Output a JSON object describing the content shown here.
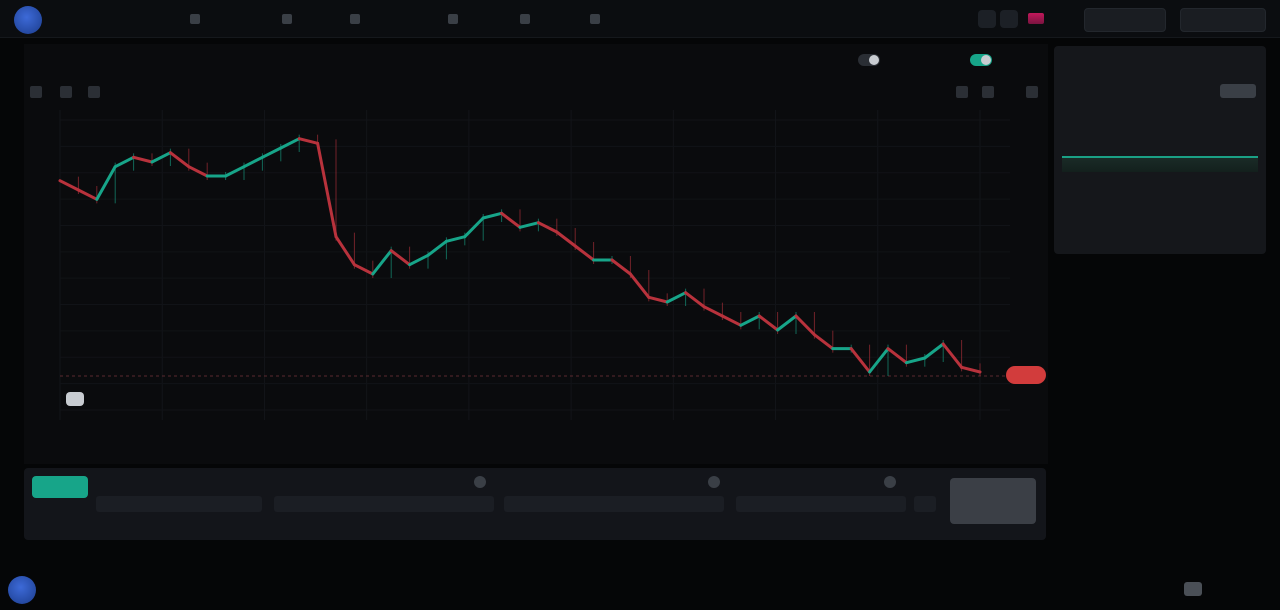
{
  "header": {
    "brand": "",
    "nav": [
      {
        "label": "",
        "icon": "chart-icon"
      },
      {
        "label": "",
        "icon": "swap-icon"
      },
      {
        "label": "",
        "icon": "pool-icon"
      },
      {
        "label": "",
        "icon": "stake-icon"
      },
      {
        "label": "",
        "icon": "vault-icon"
      },
      {
        "label": "",
        "icon": "more-icon"
      }
    ],
    "buttons": [
      "",
      ""
    ]
  },
  "chart_header": {
    "tabs": [
      "",
      ""
    ],
    "toggle_1_label": "",
    "toggle_2_label": "",
    "interval": ""
  },
  "chart": {
    "legend_pair": "",
    "legend_values": "",
    "price_tag": "",
    "time_range": "",
    "time_info": ""
  },
  "chart_data": {
    "type": "line",
    "series": [
      {
        "values": [
          8.2,
          8.0,
          7.8,
          8.5,
          8.7,
          8.6,
          8.8,
          8.5,
          8.3,
          8.3,
          8.5,
          8.7,
          8.9,
          9.1,
          9.0,
          7.0,
          6.4,
          6.2,
          6.7,
          6.4,
          6.6,
          6.9,
          7.0,
          7.4,
          7.5,
          7.2,
          7.3,
          7.1,
          6.8,
          6.5,
          6.5,
          6.2,
          5.7,
          5.6,
          5.8,
          5.5,
          5.3,
          5.1,
          5.3,
          5.0,
          5.3,
          4.9,
          4.6,
          4.6,
          4.1,
          4.6,
          4.3,
          4.4,
          4.7,
          4.2,
          4.1
        ]
      }
    ],
    "grid": true
  },
  "side_panel": {
    "title": "",
    "row1": "",
    "badge": "",
    "row2": "",
    "row3": "",
    "scale_left": "",
    "scale_mid": "",
    "scale_right": ""
  },
  "trade": {
    "buy_label": "",
    "sell_label": "",
    "field_labels": [
      "",
      "",
      "",
      ""
    ],
    "note": "",
    "submit_label": ""
  },
  "footer": {
    "brand": "",
    "links": [
      "",
      ""
    ]
  },
  "colors": {
    "up": "#17a589",
    "down": "#b8323c",
    "accent": "#3d6ad8"
  }
}
